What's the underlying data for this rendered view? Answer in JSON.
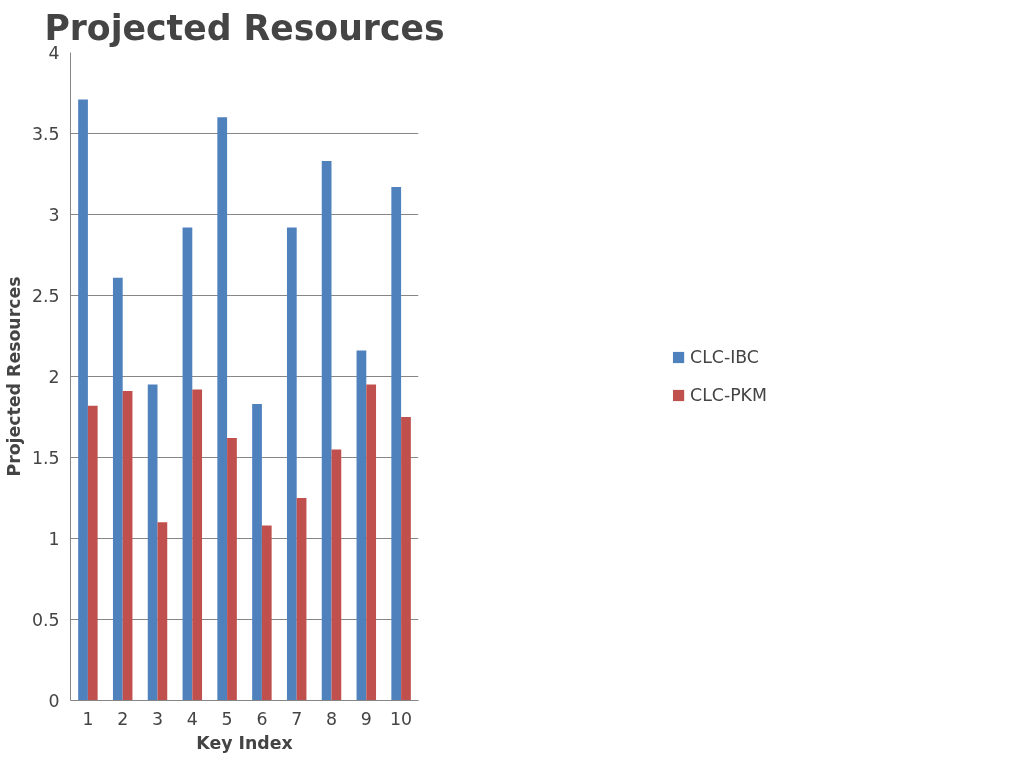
{
  "chart_data": {
    "type": "bar",
    "title": "Projected Resources",
    "xlabel": "Key Index",
    "ylabel": "Projected Resources",
    "categories": [
      "1",
      "2",
      "3",
      "4",
      "5",
      "6",
      "7",
      "8",
      "9",
      "10"
    ],
    "series": [
      {
        "name": "CLC-IBC",
        "color": "#4f81bd",
        "values": [
          3.71,
          2.61,
          1.95,
          2.92,
          3.6,
          1.83,
          2.92,
          3.33,
          2.16,
          3.17
        ]
      },
      {
        "name": "CLC-PKM",
        "color": "#c0504d",
        "values": [
          1.82,
          1.91,
          1.1,
          1.92,
          1.62,
          1.08,
          1.25,
          1.55,
          1.95,
          1.75
        ]
      }
    ],
    "ylim": [
      0,
      4
    ],
    "yticks": [
      0,
      0.5,
      1,
      1.5,
      2,
      2.5,
      3,
      3.5,
      4
    ],
    "grid": "y",
    "legend": "right"
  }
}
